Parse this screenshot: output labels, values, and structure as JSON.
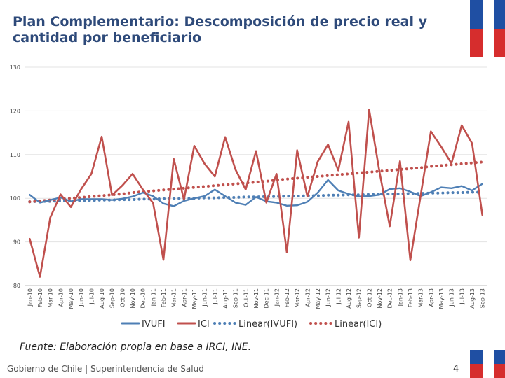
{
  "title": "Plan Complementario: Descomposición de precio real y cantidad por beneficiario",
  "source": "Fuente: Elaboración propia en base a IRCI, INE.",
  "footer": "Gobierno de Chile | Superintendencia de Salud",
  "page_number": "4",
  "chart_data": {
    "type": "line",
    "title": "",
    "xlabel": "",
    "ylabel": "",
    "ylim": [
      80,
      130
    ],
    "yticks": [
      80,
      90,
      100,
      110,
      120,
      130
    ],
    "grid": true,
    "legend_position": "bottom",
    "categories": [
      "Jan-10",
      "Feb-10",
      "Mar-10",
      "Apr-10",
      "May-10",
      "Jun-10",
      "Jul-10",
      "Aug-10",
      "Sep-10",
      "Oct-10",
      "Nov-10",
      "Dec-10",
      "Jan-11",
      "Feb-11",
      "Mar-11",
      "Apr-11",
      "May-11",
      "Jun-11",
      "Jul-11",
      "Aug-11",
      "Sep-11",
      "Oct-11",
      "Nov-11",
      "Dec-11",
      "Jan-12",
      "Feb-12",
      "Mar-12",
      "Apr-12",
      "May-12",
      "Jun-12",
      "Jul-12",
      "Aug-12",
      "Sep-12",
      "Oct-12",
      "Nov-12",
      "Dec-12",
      "Jan-13",
      "Feb-13",
      "Mar-13",
      "Apr-13",
      "May-13",
      "Jun-13",
      "Jul-13",
      "Aug-13",
      "Sep-13"
    ],
    "series": [
      {
        "name": "IVUFI",
        "style": "solid",
        "color": "#4e7fb5",
        "values": [
          100.8,
          99.0,
          99.6,
          100.2,
          99.3,
          99.8,
          99.8,
          99.8,
          99.6,
          99.9,
          100.4,
          101.3,
          100.5,
          98.8,
          98.2,
          99.4,
          100.0,
          100.5,
          102.0,
          100.5,
          99.0,
          98.5,
          100.3,
          99.3,
          99.0,
          98.3,
          98.4,
          99.2,
          101.3,
          104.2,
          101.8,
          101.0,
          100.4,
          100.5,
          100.8,
          102.1,
          102.3,
          101.5,
          100.5,
          101.4,
          102.5,
          102.3,
          102.8,
          101.8,
          103.3
        ]
      },
      {
        "name": "ICI",
        "style": "solid",
        "color": "#c0504d",
        "values": [
          90.7,
          82.0,
          95.6,
          100.9,
          98.0,
          102.1,
          105.6,
          114.1,
          100.7,
          102.9,
          105.6,
          102.0,
          98.9,
          85.9,
          109.0,
          99.7,
          112.0,
          107.9,
          105.0,
          114.0,
          106.6,
          102.0,
          110.8,
          99.0,
          105.6,
          87.6,
          111.0,
          100.4,
          108.4,
          112.3,
          106.4,
          117.5,
          91.0,
          120.3,
          106.1,
          93.6,
          108.5,
          85.8,
          100.6,
          115.3,
          111.8,
          108.0,
          116.7,
          112.6,
          96.2
        ]
      },
      {
        "name": "Linear(IVUFI)",
        "style": "dotted",
        "color": "#4e7fb5",
        "values": [
          99.2,
          99.3,
          99.3,
          99.4,
          99.4,
          99.5,
          99.5,
          99.6,
          99.6,
          99.7,
          99.7,
          99.8,
          99.8,
          99.9,
          99.9,
          100.0,
          100.0,
          100.1,
          100.1,
          100.2,
          100.2,
          100.3,
          100.3,
          100.4,
          100.4,
          100.5,
          100.5,
          100.6,
          100.6,
          100.7,
          100.7,
          100.8,
          100.8,
          100.9,
          100.9,
          101.0,
          101.0,
          101.1,
          101.1,
          101.2,
          101.2,
          101.3,
          101.3,
          101.4,
          101.4
        ]
      },
      {
        "name": "Linear(ICI)",
        "style": "dotted",
        "color": "#c0504d",
        "values": [
          99.2,
          99.4,
          99.6,
          99.8,
          100.0,
          100.2,
          100.4,
          100.6,
          100.8,
          101.0,
          101.3,
          101.5,
          101.7,
          101.9,
          102.1,
          102.3,
          102.5,
          102.7,
          102.9,
          103.1,
          103.3,
          103.5,
          103.7,
          103.9,
          104.2,
          104.4,
          104.6,
          104.8,
          105.0,
          105.2,
          105.4,
          105.6,
          105.8,
          106.0,
          106.2,
          106.4,
          106.6,
          106.8,
          107.0,
          107.3,
          107.5,
          107.7,
          107.9,
          108.1,
          108.3
        ]
      }
    ]
  }
}
